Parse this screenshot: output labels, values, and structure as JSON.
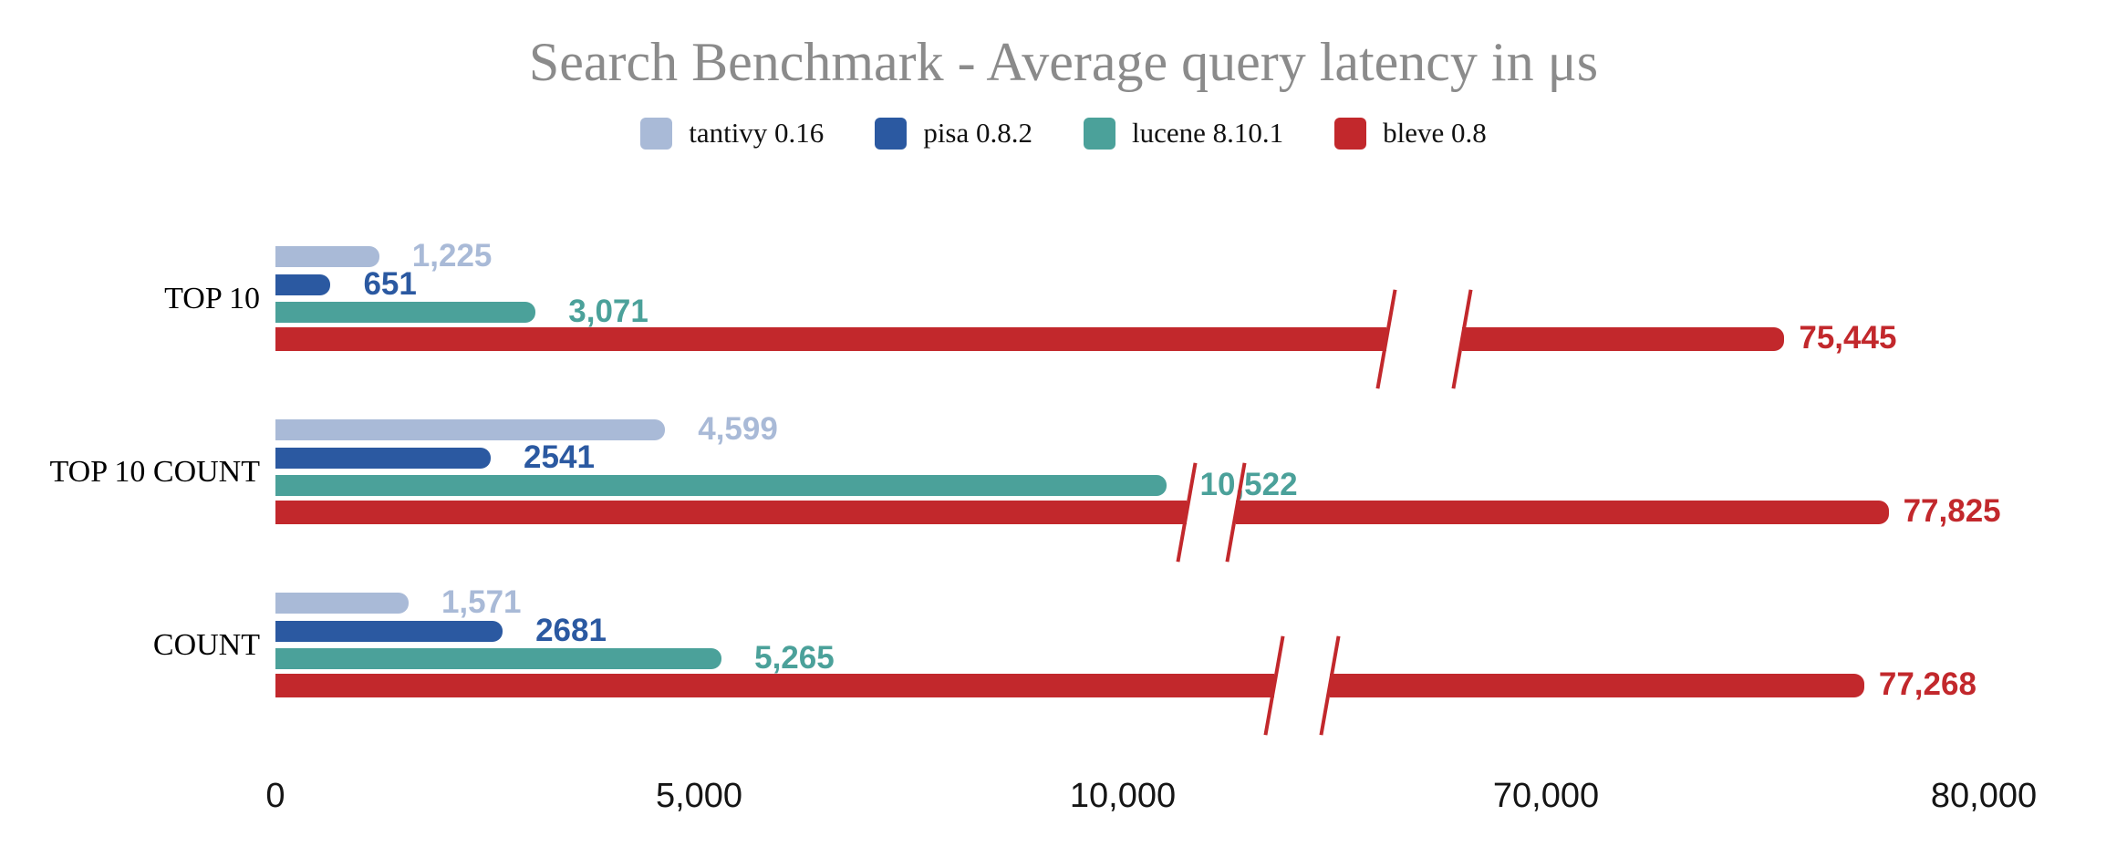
{
  "title": "Search Benchmark - Average query latency in μs",
  "chart_data": {
    "type": "bar",
    "orientation": "horizontal",
    "title": "Search Benchmark - Average query latency in μs",
    "unit": "μs",
    "categories": [
      "TOP 10",
      "TOP 10 COUNT",
      "COUNT"
    ],
    "series": [
      {
        "name": "tantivy 0.16",
        "color": "#a9bad7",
        "values": [
          1225,
          4599,
          1571
        ],
        "labels": [
          "1,225",
          "4,599",
          "1,571"
        ]
      },
      {
        "name": "pisa 0.8.2",
        "color": "#2b59a1",
        "values": [
          651,
          2541,
          2681
        ],
        "labels": [
          "651",
          "2541",
          "2681"
        ]
      },
      {
        "name": "lucene 8.10.1",
        "color": "#4ba19a",
        "values": [
          3071,
          10522,
          5265
        ],
        "labels": [
          "3,071",
          "10,522",
          "5,265"
        ]
      },
      {
        "name": "bleve 0.8",
        "color": "#c2282c",
        "values": [
          75445,
          77825,
          77268
        ],
        "labels": [
          "75,445",
          "77,825",
          "77,268"
        ]
      }
    ],
    "x_axis": {
      "ticks": [
        {
          "value": 0,
          "label": "0"
        },
        {
          "value": 5000,
          "label": "5,000"
        },
        {
          "value": 10000,
          "label": "10,000"
        },
        {
          "value": 70000,
          "label": "70,000"
        },
        {
          "value": 80000,
          "label": "80,000"
        }
      ],
      "axis_break_between": [
        10000,
        70000
      ]
    },
    "legend_position": "top",
    "grid": false,
    "value_labels_shown": true,
    "colors": {
      "title_text": "#8b8b8b",
      "axis_text": "#151515",
      "category_text": "#000000",
      "background": "#ffffff"
    }
  }
}
